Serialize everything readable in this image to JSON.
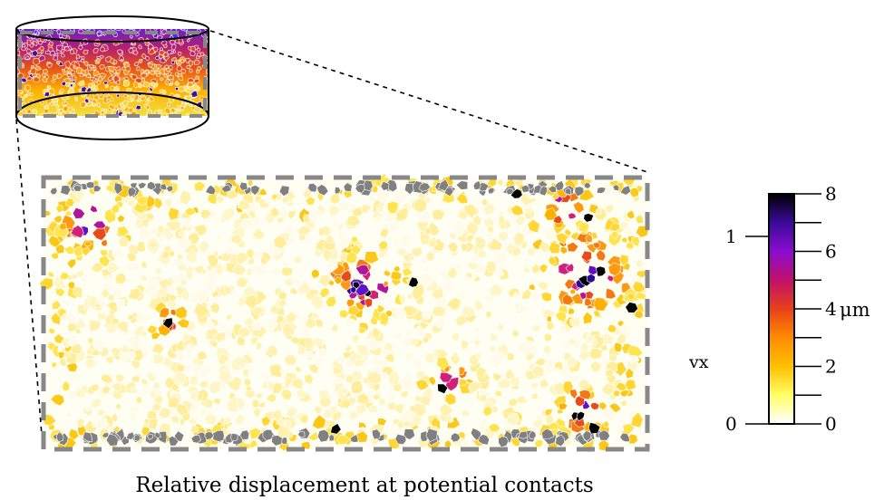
{
  "caption": "Relative displacement at potential contacts",
  "colorbar": {
    "left_label": "vx",
    "left_ticks": [
      "0",
      "1"
    ],
    "right_ticks": [
      "0",
      "2",
      "4",
      "6",
      "8"
    ],
    "unit": "μm",
    "colors": [
      "#ffffff",
      "#ffff66",
      "#ffc000",
      "#ff8c00",
      "#e8401a",
      "#c0106a",
      "#8a0dd0",
      "#3a0a9a",
      "#000000"
    ]
  },
  "palette": {
    "grey_wall": "#808080",
    "pale": [
      "#fffbe8",
      "#fff6c8",
      "#fff2b0",
      "#ffee99"
    ],
    "yellow": [
      "#ffe44d",
      "#ffd633",
      "#fbc817"
    ],
    "orange": [
      "#ffb000",
      "#ff9a10",
      "#f27a10"
    ],
    "hot": [
      "#e84a1a",
      "#d0207a",
      "#b0159a"
    ],
    "violet": [
      "#6010c8",
      "#2a0a90"
    ],
    "black": "#000000"
  }
}
